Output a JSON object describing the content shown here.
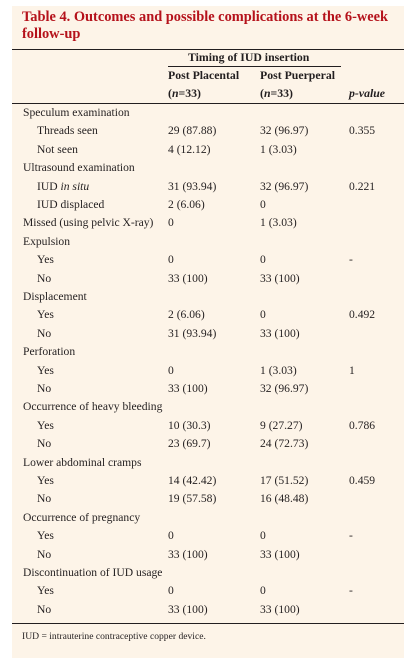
{
  "title": "Table 4. Outcomes and possible complications at the 6-week follow-up",
  "header": {
    "group": "Timing of IUD insertion",
    "col1": "Post Placental",
    "col2": "Post Puerperal",
    "n1": "(n=33)",
    "n2": "(n=33)",
    "pvalue": "p-value"
  },
  "rows": [
    {
      "label": "Speculum examination",
      "c1": "",
      "c2": "",
      "p": "",
      "indent": false
    },
    {
      "label": "Threads seen",
      "c1": "29 (87.88)",
      "c2": "32 (96.97)",
      "p": "0.355",
      "indent": true
    },
    {
      "label": "Not seen",
      "c1": "4 (12.12)",
      "c2": "1 (3.03)",
      "p": "",
      "indent": true
    },
    {
      "label": "Ultrasound examination",
      "c1": "",
      "c2": "",
      "p": "",
      "indent": false
    },
    {
      "label": "IUD in situ",
      "c1": "31 (93.94)",
      "c2": "32 (96.97)",
      "p": "0.221",
      "indent": true
    },
    {
      "label": "IUD displaced",
      "c1": "2 (6.06)",
      "c2": "0",
      "p": "",
      "indent": true
    },
    {
      "label": "Missed (using pelvic X-ray)",
      "c1": "0",
      "c2": "1 (3.03)",
      "p": "",
      "indent": false
    },
    {
      "label": "Expulsion",
      "c1": "",
      "c2": "",
      "p": "",
      "indent": false
    },
    {
      "label": "Yes",
      "c1": "0",
      "c2": "0",
      "p": "-",
      "indent": true
    },
    {
      "label": "No",
      "c1": "33 (100)",
      "c2": "33 (100)",
      "p": "",
      "indent": true
    },
    {
      "label": "Displacement",
      "c1": "",
      "c2": "",
      "p": "",
      "indent": false
    },
    {
      "label": "Yes",
      "c1": "2 (6.06)",
      "c2": "0",
      "p": "0.492",
      "indent": true
    },
    {
      "label": "No",
      "c1": "31 (93.94)",
      "c2": "33 (100)",
      "p": "",
      "indent": true
    },
    {
      "label": "Perforation",
      "c1": "",
      "c2": "",
      "p": "",
      "indent": false
    },
    {
      "label": "Yes",
      "c1": "0",
      "c2": "1 (3.03)",
      "p": "1",
      "indent": true
    },
    {
      "label": "No",
      "c1": "33 (100)",
      "c2": "32 (96.97)",
      "p": "",
      "indent": true
    },
    {
      "label": "Occurrence of heavy bleeding",
      "c1": "",
      "c2": "",
      "p": "",
      "indent": false
    },
    {
      "label": "Yes",
      "c1": "10 (30.3)",
      "c2": "9 (27.27)",
      "p": "0.786",
      "indent": true
    },
    {
      "label": "No",
      "c1": "23 (69.7)",
      "c2": "24 (72.73)",
      "p": "",
      "indent": true
    },
    {
      "label": "Lower abdominal cramps",
      "c1": "",
      "c2": "",
      "p": "",
      "indent": false
    },
    {
      "label": "Yes",
      "c1": "14 (42.42)",
      "c2": "17 (51.52)",
      "p": "0.459",
      "indent": true
    },
    {
      "label": "No",
      "c1": "19 (57.58)",
      "c2": "16 (48.48)",
      "p": "",
      "indent": true
    },
    {
      "label": "Occurrence of pregnancy",
      "c1": "",
      "c2": "",
      "p": "",
      "indent": false
    },
    {
      "label": "Yes",
      "c1": "0",
      "c2": "0",
      "p": "-",
      "indent": true
    },
    {
      "label": "No",
      "c1": "33 (100)",
      "c2": "33 (100)",
      "p": "",
      "indent": true
    },
    {
      "label": "Discontinuation of IUD usage",
      "c1": "",
      "c2": "",
      "p": "",
      "indent": false
    },
    {
      "label": "Yes",
      "c1": "0",
      "c2": "0",
      "p": "-",
      "indent": true
    },
    {
      "label": "No",
      "c1": "33 (100)",
      "c2": "33 (100)",
      "p": "",
      "indent": true
    }
  ],
  "footnote": "IUD = intrauterine contraceptive copper device.",
  "colors": {
    "title": "#b5121b",
    "panel": "#fdf4e8",
    "text": "#231f20"
  }
}
